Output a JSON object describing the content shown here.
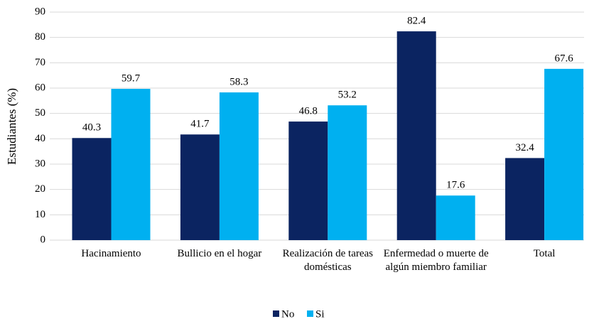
{
  "chart_data": {
    "type": "bar",
    "y_label": "Estudiantes (%)",
    "categories": [
      "Hacinamiento",
      "Bullicio en el hogar",
      "Realización de tareas domésticas",
      "Enfermedad o muerte de algún miembro familiar",
      "Total"
    ],
    "series": [
      {
        "name": "No",
        "color": "#0b2461",
        "values": [
          40.3,
          41.7,
          46.8,
          82.4,
          32.4
        ]
      },
      {
        "name": "Si",
        "color": "#00b0f0",
        "values": [
          59.7,
          58.3,
          53.2,
          17.6,
          67.6
        ]
      }
    ],
    "ylim": [
      0,
      90
    ],
    "yticks": [
      0,
      10,
      20,
      30,
      40,
      50,
      60,
      70,
      80,
      90
    ],
    "grid": true,
    "legend": "bottom"
  }
}
